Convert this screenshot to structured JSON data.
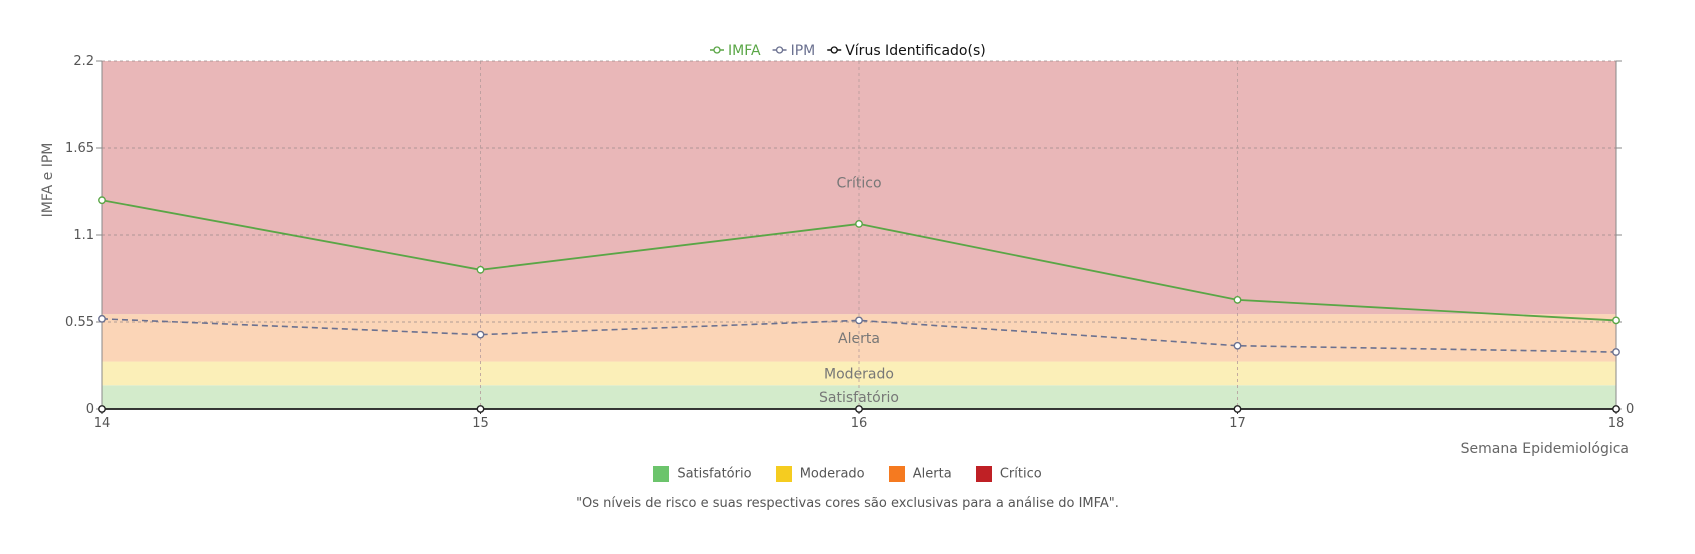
{
  "chart_data": {
    "type": "line",
    "x": [
      14,
      15,
      16,
      17,
      18
    ],
    "xlabel": "Semana Epidemiológica",
    "ylabel": "IMFA e IPM",
    "ylim": [
      0,
      2.2
    ],
    "yticks": [
      "0",
      "0.55",
      "1.1",
      "1.65",
      "2.2"
    ],
    "xticks": [
      "14",
      "15",
      "16",
      "17",
      "18"
    ],
    "y2ticks": [
      "0"
    ],
    "grid": true,
    "series": [
      {
        "name": "IMFA",
        "values": [
          1.32,
          0.88,
          1.17,
          0.69,
          0.56
        ],
        "color": "#5aa646",
        "style": "solid"
      },
      {
        "name": "IPM",
        "values": [
          0.57,
          0.47,
          0.56,
          0.4,
          0.36
        ],
        "color": "#6b7190",
        "style": "dashed"
      },
      {
        "name": "Vírus Identificado(s)",
        "values": [
          0,
          0,
          0,
          0,
          0
        ],
        "color": "#222222",
        "style": "solid"
      }
    ],
    "bands": [
      {
        "label": "Satisfatório",
        "from": 0,
        "to": 0.15,
        "color": "#d3ebcb"
      },
      {
        "label": "Moderado",
        "from": 0.15,
        "to": 0.3,
        "color": "#fbefb8"
      },
      {
        "label": "Alerta",
        "from": 0.3,
        "to": 0.6,
        "color": "#fbd5b7"
      },
      {
        "label": "Crítico",
        "from": 0.6,
        "to": 2.2,
        "color": "#e9b7b8"
      }
    ]
  },
  "risk_legend": [
    {
      "label": "Satisfatório",
      "color": "#6cc46c"
    },
    {
      "label": "Moderado",
      "color": "#f5cc20"
    },
    {
      "label": "Alerta",
      "color": "#f57a20"
    },
    {
      "label": "Crítico",
      "color": "#bf2025"
    }
  ],
  "footnote": "\"Os níveis de risco e suas respectivas cores são exclusivas para a análise do IMFA\"."
}
